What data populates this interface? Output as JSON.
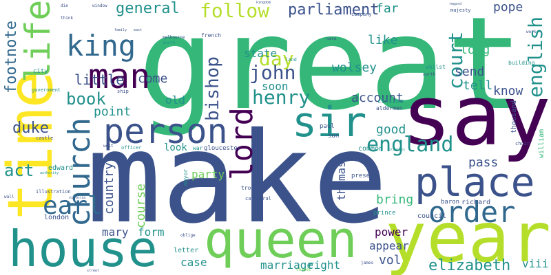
{
  "palette": {
    "dark_purple": "#440154",
    "indigo": "#3b528b",
    "slate_blue": "#31688e",
    "teal": "#21918c",
    "green": "#35b779",
    "lime": "#6ece58",
    "yellow": "#fde725",
    "yellow_green": "#b5de2b"
  },
  "words": {
    "great": "great",
    "make": "make",
    "say": "say",
    "year": "year",
    "time": "time",
    "house": "house",
    "queen": "queen",
    "sir": "sir",
    "person": "person",
    "place": "place",
    "man": "man",
    "king": "king",
    "life": "life",
    "church": "church",
    "lord": "lord",
    "order": "order",
    "earl": "earl",
    "england": "england",
    "general": "general",
    "follow": "follow",
    "parliament": "parliament",
    "day": "day",
    "court": "court",
    "english": "english",
    "henry": "henry",
    "john": "john",
    "bishop": "bishop",
    "elizabeth": "elizabeth",
    "footnote": "footnote",
    "book": "book",
    "duke": "duke",
    "act": "act",
    "little": "little",
    "come": "come",
    "old": "old",
    "point": "point",
    "state": "state",
    "soon": "soon",
    "account": "account",
    "good": "good",
    "wolsey": "wolsey",
    "pope": "pope",
    "far": "far",
    "like": "like",
    "send": "send",
    "long": "long",
    "know": "know",
    "tell": "tell",
    "pass": "pass",
    "country": "country",
    "course": "course",
    "party": "party",
    "thomas": "thomas",
    "bring": "bring",
    "mary": "mary",
    "form": "form",
    "power": "power",
    "appear": "appear",
    "vol": "vol",
    "case": "case",
    "marriage": "marriage",
    "right": "right",
    "viii": "viii",
    "look": "look",
    "thousand": "thousand",
    "william": "william",
    "london": "london",
    "edward": "edward",
    "richard": "richard",
    "baron": "baron",
    "council": "council",
    "prince": "prince",
    "common": "common",
    "paul": "paul",
    "son": "son",
    "citizen": "citizen",
    "aldermen": "aldermen",
    "gloucester": "gloucester",
    "war": "war",
    "mayor": "mayor",
    "troops": "troops",
    "cathedral": "cathedral",
    "present": "present",
    "letter": "letter",
    "oblige": "oblige",
    "french": "french",
    "melbourne": "melbourne",
    "south": "south",
    "nave": "nave",
    "land": "land",
    "building": "building",
    "whilst": "whilst",
    "north": "north",
    "company": "company",
    "majesty": "majesty",
    "window": "window",
    "die": "die",
    "think": "think",
    "family": "family",
    "east": "east",
    "city": "city",
    "government": "government",
    "ship": "ship",
    "castle": "castle",
    "west": "west",
    "officer": "officer",
    "authority": "authority",
    "illustration": "illustration",
    "wall": "wall",
    "victoria": "victoria",
    "choir": "choir",
    "princess": "princess",
    "chapel": "chapel",
    "street": "street",
    "james": "james",
    "regard": "regard",
    "work": "work",
    "kingdom": "kingdom"
  }
}
